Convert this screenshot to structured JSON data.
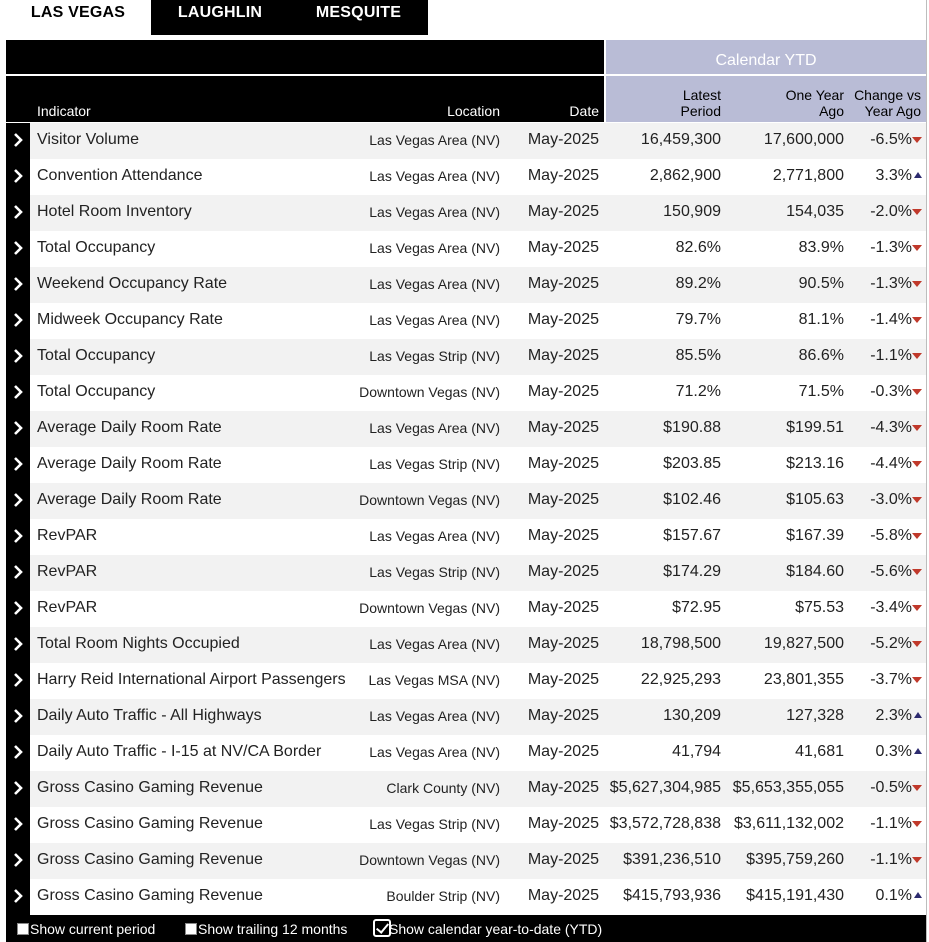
{
  "tabs": [
    {
      "label": "LAS VEGAS",
      "active": true
    },
    {
      "label": "LAUGHLIN",
      "active": false
    },
    {
      "label": "MESQUITE",
      "active": false
    }
  ],
  "header": {
    "group": "Calendar YTD",
    "indicator": "Indicator",
    "location": "Location",
    "date": "Date",
    "latest_l1": "Latest",
    "latest_l2": "Period",
    "ago_l1": "One Year",
    "ago_l2": "Ago",
    "chg_l1": "Change vs",
    "chg_l2": "Year Ago"
  },
  "colors": {
    "down": "#c0392b",
    "up": "#2c2a6e",
    "ytd_header": "#b9bcd6"
  },
  "rows": [
    {
      "indicator": "Visitor Volume",
      "location": "Las Vegas Area (NV)",
      "date": "May-2025",
      "latest": "16,459,300",
      "ago": "17,600,000",
      "change": "-6.5%",
      "trend": "down"
    },
    {
      "indicator": "Convention Attendance",
      "location": "Las Vegas Area (NV)",
      "date": "May-2025",
      "latest": "2,862,900",
      "ago": "2,771,800",
      "change": "3.3%",
      "trend": "up"
    },
    {
      "indicator": "Hotel Room Inventory",
      "location": "Las Vegas Area (NV)",
      "date": "May-2025",
      "latest": "150,909",
      "ago": "154,035",
      "change": "-2.0%",
      "trend": "down"
    },
    {
      "indicator": "Total Occupancy",
      "location": "Las Vegas Area (NV)",
      "date": "May-2025",
      "latest": "82.6%",
      "ago": "83.9%",
      "change": "-1.3%",
      "trend": "down"
    },
    {
      "indicator": "Weekend Occupancy Rate",
      "location": "Las Vegas Area (NV)",
      "date": "May-2025",
      "latest": "89.2%",
      "ago": "90.5%",
      "change": "-1.3%",
      "trend": "down"
    },
    {
      "indicator": "Midweek Occupancy Rate",
      "location": "Las Vegas Area (NV)",
      "date": "May-2025",
      "latest": "79.7%",
      "ago": "81.1%",
      "change": "-1.4%",
      "trend": "down"
    },
    {
      "indicator": "Total Occupancy",
      "location": "Las Vegas Strip (NV)",
      "date": "May-2025",
      "latest": "85.5%",
      "ago": "86.6%",
      "change": "-1.1%",
      "trend": "down"
    },
    {
      "indicator": "Total Occupancy",
      "location": "Downtown Vegas (NV)",
      "date": "May-2025",
      "latest": "71.2%",
      "ago": "71.5%",
      "change": "-0.3%",
      "trend": "down"
    },
    {
      "indicator": "Average Daily Room Rate",
      "location": "Las Vegas Area (NV)",
      "date": "May-2025",
      "latest": "$190.88",
      "ago": "$199.51",
      "change": "-4.3%",
      "trend": "down"
    },
    {
      "indicator": "Average Daily Room Rate",
      "location": "Las Vegas Strip (NV)",
      "date": "May-2025",
      "latest": "$203.85",
      "ago": "$213.16",
      "change": "-4.4%",
      "trend": "down"
    },
    {
      "indicator": "Average Daily Room Rate",
      "location": "Downtown Vegas (NV)",
      "date": "May-2025",
      "latest": "$102.46",
      "ago": "$105.63",
      "change": "-3.0%",
      "trend": "down"
    },
    {
      "indicator": "RevPAR",
      "location": "Las Vegas Area (NV)",
      "date": "May-2025",
      "latest": "$157.67",
      "ago": "$167.39",
      "change": "-5.8%",
      "trend": "down"
    },
    {
      "indicator": "RevPAR",
      "location": "Las Vegas Strip (NV)",
      "date": "May-2025",
      "latest": "$174.29",
      "ago": "$184.60",
      "change": "-5.6%",
      "trend": "down"
    },
    {
      "indicator": "RevPAR",
      "location": "Downtown Vegas (NV)",
      "date": "May-2025",
      "latest": "$72.95",
      "ago": "$75.53",
      "change": "-3.4%",
      "trend": "down"
    },
    {
      "indicator": "Total Room Nights Occupied",
      "location": "Las Vegas Area (NV)",
      "date": "May-2025",
      "latest": "18,798,500",
      "ago": "19,827,500",
      "change": "-5.2%",
      "trend": "down"
    },
    {
      "indicator": "Harry Reid International Airport Passengers",
      "location": "Las Vegas MSA (NV)",
      "date": "May-2025",
      "latest": "22,925,293",
      "ago": "23,801,355",
      "change": "-3.7%",
      "trend": "down"
    },
    {
      "indicator": "Daily Auto Traffic - All Highways",
      "location": "Las Vegas Area (NV)",
      "date": "May-2025",
      "latest": "130,209",
      "ago": "127,328",
      "change": "2.3%",
      "trend": "up"
    },
    {
      "indicator": "Daily Auto Traffic - I-15 at NV/CA Border",
      "location": "Las Vegas Area (NV)",
      "date": "May-2025",
      "latest": "41,794",
      "ago": "41,681",
      "change": "0.3%",
      "trend": "up"
    },
    {
      "indicator": "Gross Casino Gaming Revenue",
      "location": "Clark County (NV)",
      "date": "May-2025",
      "latest": "$5,627,304,985",
      "ago": "$5,653,355,055",
      "change": "-0.5%",
      "trend": "down"
    },
    {
      "indicator": "Gross Casino Gaming Revenue",
      "location": "Las Vegas Strip (NV)",
      "date": "May-2025",
      "latest": "$3,572,728,838",
      "ago": "$3,611,132,002",
      "change": "-1.1%",
      "trend": "down"
    },
    {
      "indicator": "Gross Casino Gaming Revenue",
      "location": "Downtown Vegas (NV)",
      "date": "May-2025",
      "latest": "$391,236,510",
      "ago": "$395,759,260",
      "change": "-1.1%",
      "trend": "down"
    },
    {
      "indicator": "Gross Casino Gaming Revenue",
      "location": "Boulder Strip (NV)",
      "date": "May-2025",
      "latest": "$415,793,936",
      "ago": "$415,191,430",
      "change": "0.1%",
      "trend": "up"
    }
  ],
  "footer": {
    "opt_current": "Show current period",
    "opt_trailing": "Show trailing 12 months",
    "opt_ytd": "Show calendar year-to-date (YTD)",
    "checked": "ytd"
  }
}
